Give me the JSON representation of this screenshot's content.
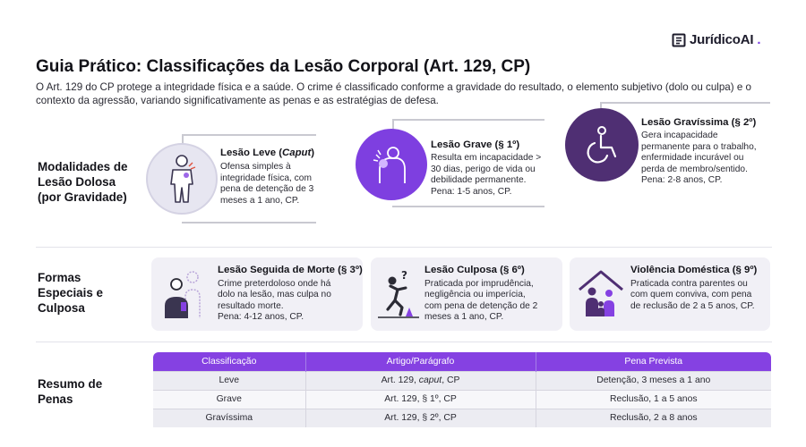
{
  "brand": {
    "name": "JurídicoAI",
    "dot": "."
  },
  "header": {
    "title": "Guia Prático: Classificações da Lesão Corporal (Art. 129, CP)",
    "intro": "O Art. 129 do CP protege a integridade física e a saúde. O crime é classificado conforme a gravidade do resultado, o elemento subjetivo (dolo ou culpa) e o contexto da agressão, variando significativamente as penas e as estratégias de defesa."
  },
  "dolosa": {
    "label_lines": [
      "Modalidades de",
      "Lesão Dolosa",
      "(por Gravidade)"
    ],
    "items": [
      {
        "title": "Lesão Leve (",
        "title_em": "Caput",
        "title_end": ")",
        "desc_lines": [
          "Ofensa simples à",
          "integridade física, com",
          "pena de detenção de 3",
          "meses a 1 ano, CP."
        ],
        "icon": "body-bruise-icon"
      },
      {
        "title": "Lesão Grave (§ 1º)",
        "desc_lines": [
          "Resulta em incapacidade >",
          "30 dias, perigo de vida ou",
          "debilidade permanente.",
          "Pena: 1-5 anos, CP."
        ],
        "icon": "injured-shoulder-icon"
      },
      {
        "title": "Lesão Gravíssima (§ 2º)",
        "desc_lines": [
          "Gera incapacidade",
          "permanente para o trabalho,",
          "enfermidade incurável ou",
          "perda de membro/sentido.",
          "Pena: 2-8 anos, CP."
        ],
        "icon": "wheelchair-icon"
      }
    ]
  },
  "especiais": {
    "label_lines": [
      "Formas",
      "Especiais e",
      "Culposa"
    ],
    "cards": [
      {
        "title": "Lesão Seguida de Morte (§ 3º)",
        "desc_lines": [
          "Crime preterdoloso onde há",
          "dolo na lesão, mas culpa no",
          "resultado morte.",
          "Pena: 4-12 anos, CP."
        ],
        "icon": "person-and-ghost-icon"
      },
      {
        "title": "Lesão Culposa (§ 6º)",
        "desc_lines": [
          "Praticada por imprudência,",
          "negligência ou imperícia,",
          "com pena de detenção de 2",
          "meses a 1 ano, CP."
        ],
        "icon": "person-tripping-icon"
      },
      {
        "title": "Violência Doméstica (§ 9º)",
        "desc_lines": [
          "Praticada contra parentes ou",
          "com quem conviva, com pena",
          "de reclusão de 2 a 5 anos, CP."
        ],
        "icon": "family-house-icon"
      }
    ]
  },
  "resumo": {
    "label_lines": [
      "Resumo de",
      "Penas"
    ],
    "columns": [
      "Classificação",
      "Artigo/Parágrafo",
      "Pena Prevista"
    ],
    "rows": [
      {
        "classe": "Leve",
        "artigo_pre": "Art. 129, ",
        "artigo_em": "caput",
        "artigo_post": ", CP",
        "pena": "Detenção, 3 meses a 1 ano"
      },
      {
        "classe": "Grave",
        "artigo_pre": "Art. 129, § 1º, CP",
        "artigo_em": "",
        "artigo_post": "",
        "pena": "Reclusão, 1 a 5 anos"
      },
      {
        "classe": "Gravíssima",
        "artigo_pre": "Art. 129, § 2º, CP",
        "artigo_em": "",
        "artigo_post": "",
        "pena": "Reclusão, 2 a 8 anos"
      }
    ]
  },
  "colors": {
    "accent": "#8541e2",
    "accent_dark": "#4f2f73",
    "accent_mid": "#7e3fe0",
    "card_bg": "#f1f0f6"
  }
}
